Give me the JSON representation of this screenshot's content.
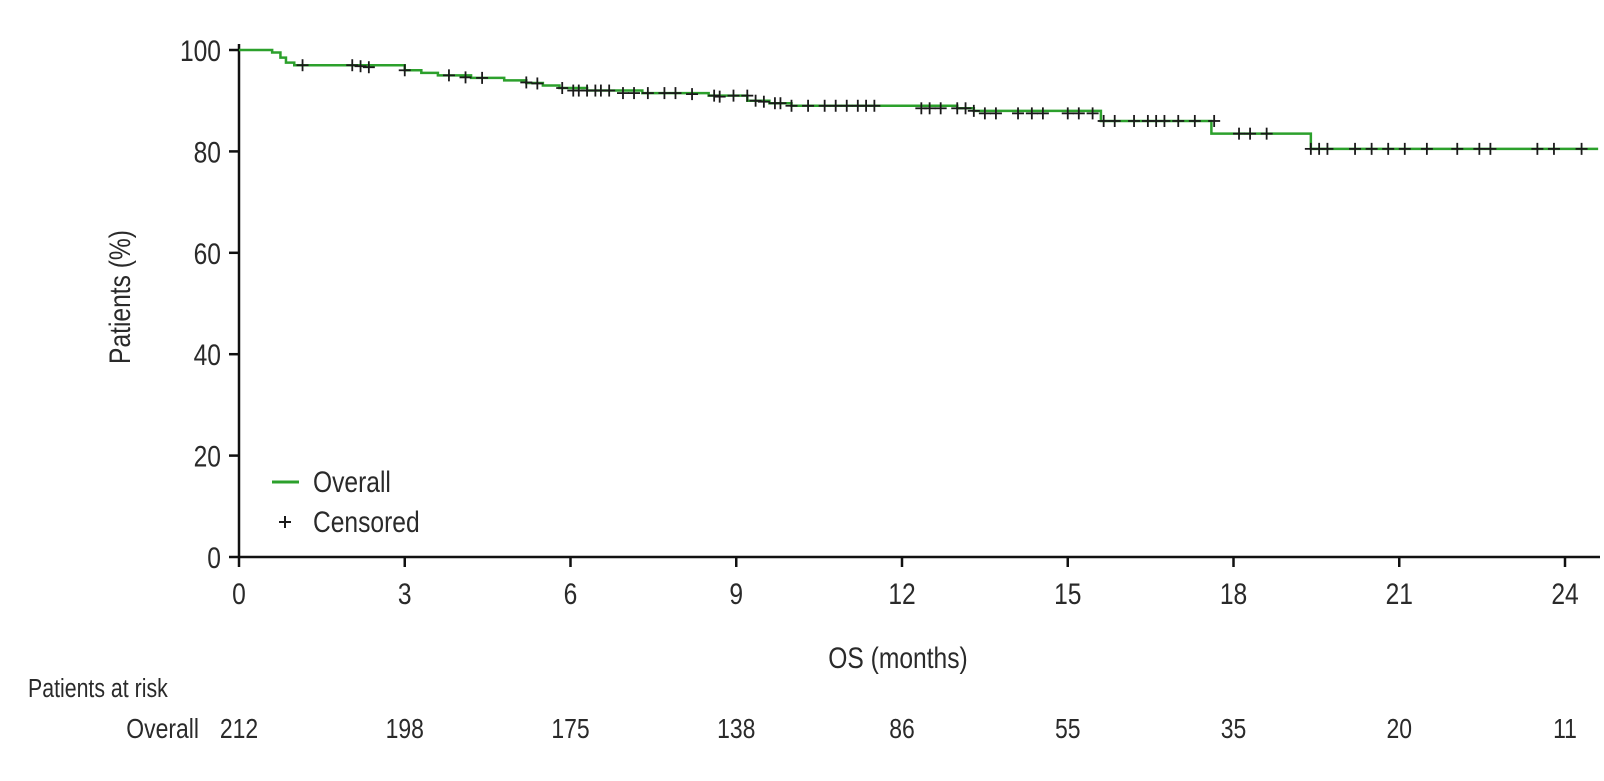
{
  "colors": {
    "curve": "#2ca02c",
    "axis": "#111111",
    "censor": "#1a1a1a",
    "text": "#2a2a2a"
  },
  "chart_data": {
    "type": "line",
    "title": "",
    "xlabel": "OS (months)",
    "ylabel": "Patients (%)",
    "xlim": [
      0,
      24.6
    ],
    "ylim": [
      0,
      100
    ],
    "xticks": [
      0,
      3,
      6,
      9,
      12,
      15,
      18,
      21,
      24
    ],
    "yticks": [
      0,
      20,
      40,
      60,
      80,
      100
    ],
    "legend": {
      "position": "bottom-left",
      "entries": [
        "Overall",
        "Censored"
      ]
    },
    "grid": false,
    "series": [
      {
        "name": "Overall",
        "step": true,
        "points": [
          [
            0,
            100
          ],
          [
            0.6,
            99.5
          ],
          [
            0.75,
            98.5
          ],
          [
            0.85,
            97.5
          ],
          [
            1.0,
            97
          ],
          [
            3.0,
            96
          ],
          [
            3.3,
            95.5
          ],
          [
            3.6,
            95
          ],
          [
            4.2,
            94.5
          ],
          [
            4.8,
            94
          ],
          [
            5.2,
            93.5
          ],
          [
            5.5,
            93
          ],
          [
            5.8,
            92.5
          ],
          [
            6.3,
            92
          ],
          [
            7.3,
            91.5
          ],
          [
            8.5,
            91
          ],
          [
            9.2,
            90
          ],
          [
            9.6,
            89.5
          ],
          [
            10.0,
            89
          ],
          [
            13.0,
            88.5
          ],
          [
            13.3,
            88
          ],
          [
            15.6,
            86
          ],
          [
            17.6,
            83.5
          ],
          [
            19.4,
            80.5
          ],
          [
            24.6,
            80.5
          ]
        ]
      },
      {
        "name": "Censored",
        "marker": "+",
        "points": [
          [
            1.15,
            97
          ],
          [
            2.05,
            97
          ],
          [
            2.2,
            96.8
          ],
          [
            2.35,
            96.6
          ],
          [
            3.0,
            96
          ],
          [
            3.8,
            95
          ],
          [
            4.1,
            94.6
          ],
          [
            4.4,
            94.5
          ],
          [
            5.2,
            93.6
          ],
          [
            5.4,
            93.4
          ],
          [
            5.85,
            92.5
          ],
          [
            6.05,
            92
          ],
          [
            6.15,
            92
          ],
          [
            6.3,
            92
          ],
          [
            6.45,
            92
          ],
          [
            6.55,
            92
          ],
          [
            6.7,
            92
          ],
          [
            6.95,
            91.5
          ],
          [
            7.15,
            91.5
          ],
          [
            7.4,
            91.5
          ],
          [
            7.7,
            91.5
          ],
          [
            7.9,
            91.5
          ],
          [
            8.2,
            91.3
          ],
          [
            8.6,
            91
          ],
          [
            8.7,
            90.8
          ],
          [
            8.95,
            91
          ],
          [
            9.2,
            91
          ],
          [
            9.35,
            90
          ],
          [
            9.5,
            89.8
          ],
          [
            9.7,
            89.5
          ],
          [
            9.8,
            89.5
          ],
          [
            10.0,
            89
          ],
          [
            10.3,
            89
          ],
          [
            10.6,
            89
          ],
          [
            10.8,
            89
          ],
          [
            11.0,
            89
          ],
          [
            11.2,
            89
          ],
          [
            11.35,
            89
          ],
          [
            11.5,
            89
          ],
          [
            12.35,
            88.5
          ],
          [
            12.5,
            88.5
          ],
          [
            12.7,
            88.5
          ],
          [
            13.0,
            88.5
          ],
          [
            13.15,
            88.5
          ],
          [
            13.3,
            88
          ],
          [
            13.5,
            87.5
          ],
          [
            13.7,
            87.5
          ],
          [
            14.1,
            87.5
          ],
          [
            14.35,
            87.5
          ],
          [
            14.55,
            87.5
          ],
          [
            15.0,
            87.5
          ],
          [
            15.2,
            87.5
          ],
          [
            15.45,
            87.5
          ],
          [
            15.65,
            86
          ],
          [
            15.85,
            86
          ],
          [
            16.2,
            86
          ],
          [
            16.45,
            86
          ],
          [
            16.6,
            86
          ],
          [
            16.75,
            86
          ],
          [
            17.0,
            86
          ],
          [
            17.3,
            86
          ],
          [
            17.65,
            86
          ],
          [
            18.1,
            83.5
          ],
          [
            18.3,
            83.5
          ],
          [
            18.6,
            83.5
          ],
          [
            19.4,
            80.5
          ],
          [
            19.55,
            80.5
          ],
          [
            19.7,
            80.5
          ],
          [
            20.2,
            80.5
          ],
          [
            20.5,
            80.5
          ],
          [
            20.8,
            80.5
          ],
          [
            21.1,
            80.5
          ],
          [
            21.5,
            80.5
          ],
          [
            22.05,
            80.5
          ],
          [
            22.45,
            80.5
          ],
          [
            22.65,
            80.5
          ],
          [
            23.5,
            80.5
          ],
          [
            23.8,
            80.5
          ],
          [
            24.3,
            80.5
          ]
        ]
      }
    ],
    "risk_table": {
      "title": "Patients at risk",
      "row_label": "Overall",
      "times": [
        0,
        3,
        6,
        9,
        12,
        15,
        18,
        21,
        24
      ],
      "values": [
        212,
        198,
        175,
        138,
        86,
        55,
        35,
        20,
        11
      ]
    }
  }
}
